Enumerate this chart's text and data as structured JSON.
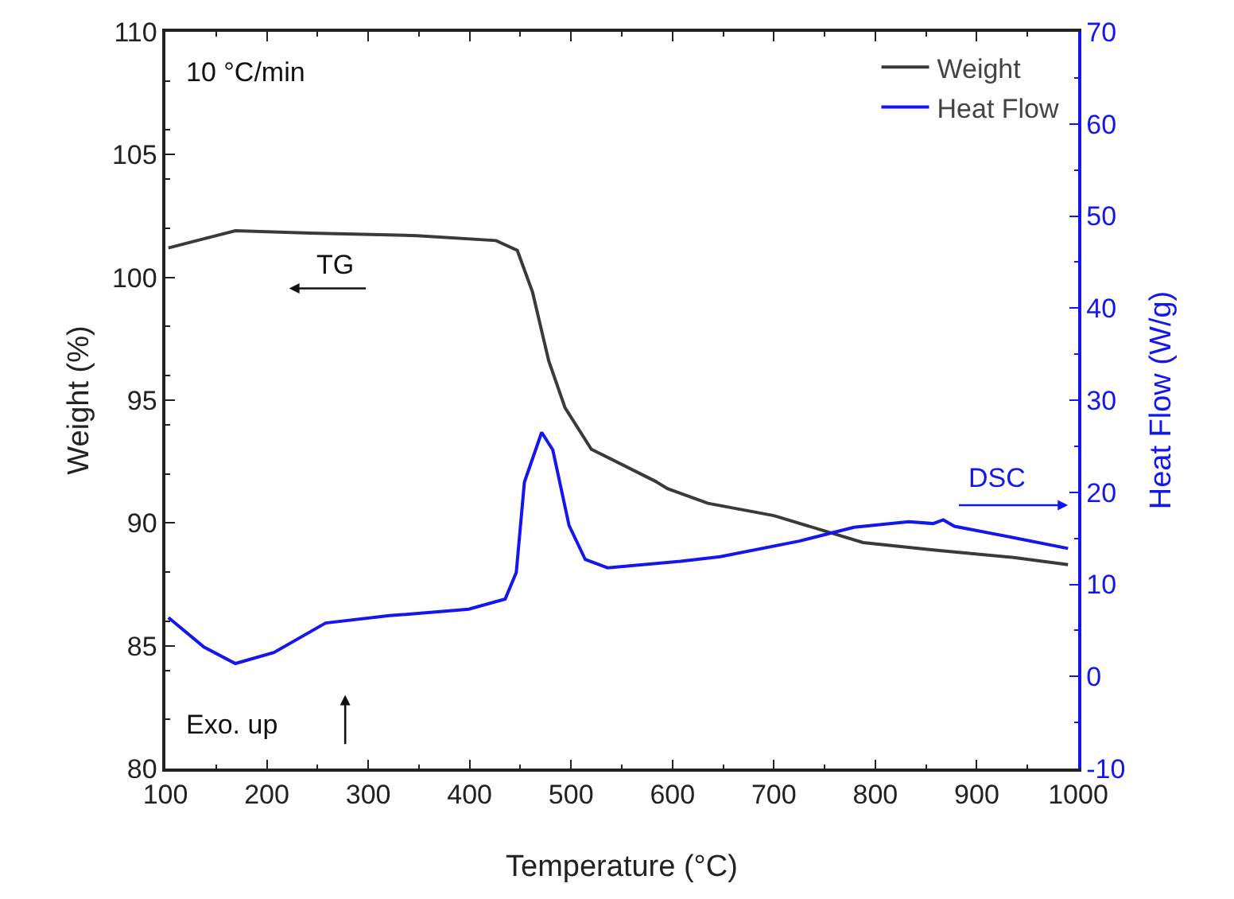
{
  "chart_data": {
    "type": "line",
    "xlabel": "Temperature (°C)",
    "ylabel": "Weight (%)",
    "y2label": "Heat Flow (W/g)",
    "xlim": [
      100,
      1000
    ],
    "xticks": [
      100,
      200,
      300,
      400,
      500,
      600,
      700,
      800,
      900,
      1000
    ],
    "ylim": [
      80,
      110
    ],
    "yticks": [
      80,
      85,
      90,
      95,
      100,
      105,
      110
    ],
    "y2lim": [
      -10,
      70
    ],
    "y2ticks": [
      -10,
      0,
      10,
      20,
      30,
      40,
      50,
      60,
      70
    ],
    "grid": false,
    "legend": "top right",
    "marker": "none",
    "line_style": "solid",
    "annotations": [
      "10 °C/min",
      "TG",
      "DSC",
      "Exo. up"
    ],
    "series": [
      {
        "name": "Weight",
        "color": "#3a3a3a",
        "x": [
          103,
          169,
          243,
          348,
          426,
          447,
          462,
          478,
          494,
          520,
          583,
          595,
          635,
          700,
          788,
          857,
          935,
          990
        ],
        "values": [
          101.2,
          101.9,
          101.8,
          101.7,
          101.5,
          101.1,
          99.4,
          96.6,
          94.7,
          93.0,
          91.7,
          91.4,
          90.8,
          90.3,
          89.2,
          88.9,
          88.6,
          88.3
        ]
      },
      {
        "name": "Heat Flow",
        "color": "#1515f0",
        "axis": "y2",
        "x": [
          103,
          138,
          169,
          207,
          258,
          321,
          399,
          435,
          446,
          454,
          471,
          482,
          498,
          514,
          536,
          608,
          647,
          725,
          779,
          833,
          857,
          867,
          878,
          935,
          990
        ],
        "values": [
          6.4,
          3.2,
          1.4,
          2.6,
          5.8,
          6.6,
          7.3,
          8.4,
          11.3,
          21.1,
          26.5,
          24.6,
          16.4,
          12.7,
          11.8,
          12.5,
          13.0,
          14.7,
          16.2,
          16.8,
          16.6,
          17.0,
          16.3,
          15.1,
          13.9
        ]
      }
    ]
  }
}
